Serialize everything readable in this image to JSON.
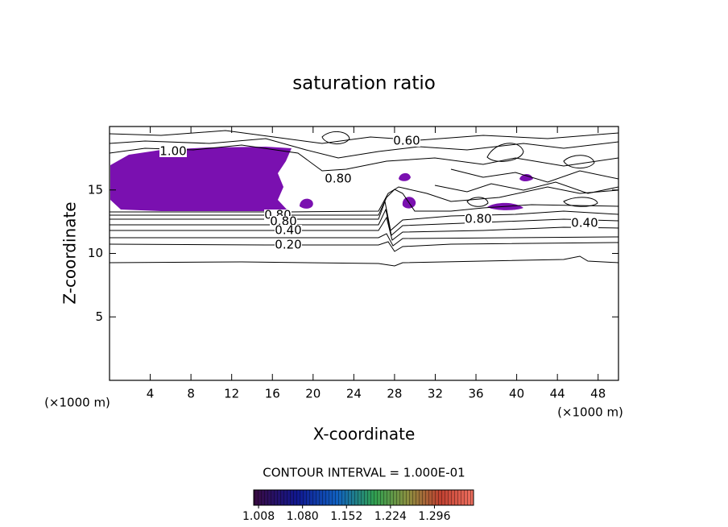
{
  "chart_data": {
    "type": "contour",
    "title": "saturation ratio",
    "x_label": "X-coordinate",
    "y_label": "Z-coordinate",
    "x_unit": "(×1000 m)",
    "y_unit": "(×1000 m)",
    "xlim": [
      0,
      50
    ],
    "ylim": [
      0,
      20
    ],
    "xticks": [
      4,
      8,
      12,
      16,
      20,
      24,
      28,
      32,
      36,
      40,
      44,
      48
    ],
    "yticks": [
      5,
      10,
      15
    ],
    "contour_interval_text": "CONTOUR INTERVAL = 1.000E-01",
    "contour_labels": [
      "1.00",
      "0.60",
      "0.80",
      "0.80",
      "0.80",
      "0.40",
      "0.20",
      "0.80",
      "0.40"
    ],
    "fill_color": "#7a10b0",
    "colorbar": {
      "lim": [
        1.0,
        1.36
      ],
      "ticks": [
        {
          "value": 1.008,
          "label": "1.008"
        },
        {
          "value": 1.08,
          "label": "1.080"
        },
        {
          "value": 1.152,
          "label": "1.152"
        },
        {
          "value": 1.224,
          "label": "1.224"
        },
        {
          "value": 1.296,
          "label": "1.296"
        }
      ]
    }
  }
}
